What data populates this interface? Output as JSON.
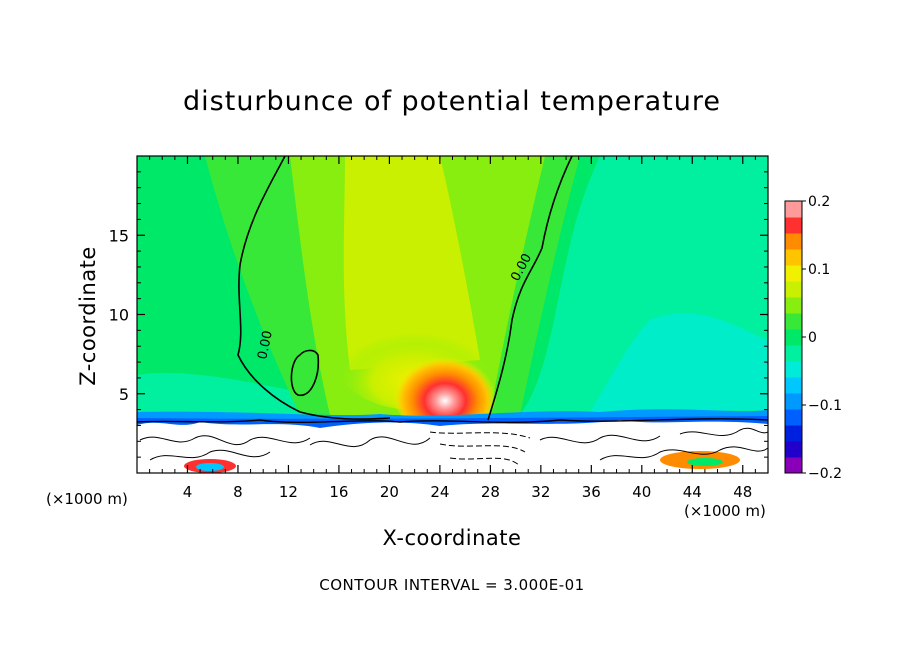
{
  "chart_data": {
    "type": "heatmap",
    "title": "disturbunce of potential temperature",
    "xlabel": "X-coordinate",
    "ylabel": "Z-coordinate",
    "x_unit_label": "(×1000 m)",
    "xlim": [
      0,
      50
    ],
    "ylim": [
      0,
      20
    ],
    "x_ticks": [
      4,
      8,
      12,
      16,
      20,
      24,
      28,
      32,
      36,
      40,
      44,
      48
    ],
    "y_ticks": [
      5,
      10,
      15
    ],
    "colorbar": {
      "range": [
        -0.2,
        0.2
      ],
      "tick_values": [
        0.2,
        0.1,
        0,
        -0.1,
        -0.2
      ],
      "tick_labels": [
        "0.2",
        "0.1",
        "0",
        "−0.1",
        "−0.2"
      ],
      "levels": [
        -0.2,
        -0.175,
        -0.15,
        -0.125,
        -0.1,
        -0.075,
        -0.05,
        -0.025,
        0,
        0.025,
        0.05,
        0.075,
        0.1,
        0.125,
        0.15,
        0.175,
        0.2
      ],
      "colors": [
        "#8a00b8",
        "#2200cc",
        "#0020e0",
        "#0060ff",
        "#0099ff",
        "#00c8ff",
        "#00ecd8",
        "#00f0a0",
        "#00e868",
        "#38e838",
        "#88ee10",
        "#c8f000",
        "#f0f000",
        "#ffc400",
        "#ff8c00",
        "#ff3030",
        "#ff9a9a"
      ]
    },
    "contour_labels": [
      "0.00",
      "0.00"
    ],
    "contour_interval_text": "CONTOUR INTERVAL = 3.000E-01",
    "field_features": [
      {
        "name": "warm core",
        "x": 24,
        "z": 4,
        "value": 0.19
      },
      {
        "name": "warm plume",
        "x": 22,
        "z": 13,
        "value": 0.06
      },
      {
        "name": "cool layer",
        "x": 45,
        "z": 5,
        "value": -0.04
      }
    ]
  }
}
